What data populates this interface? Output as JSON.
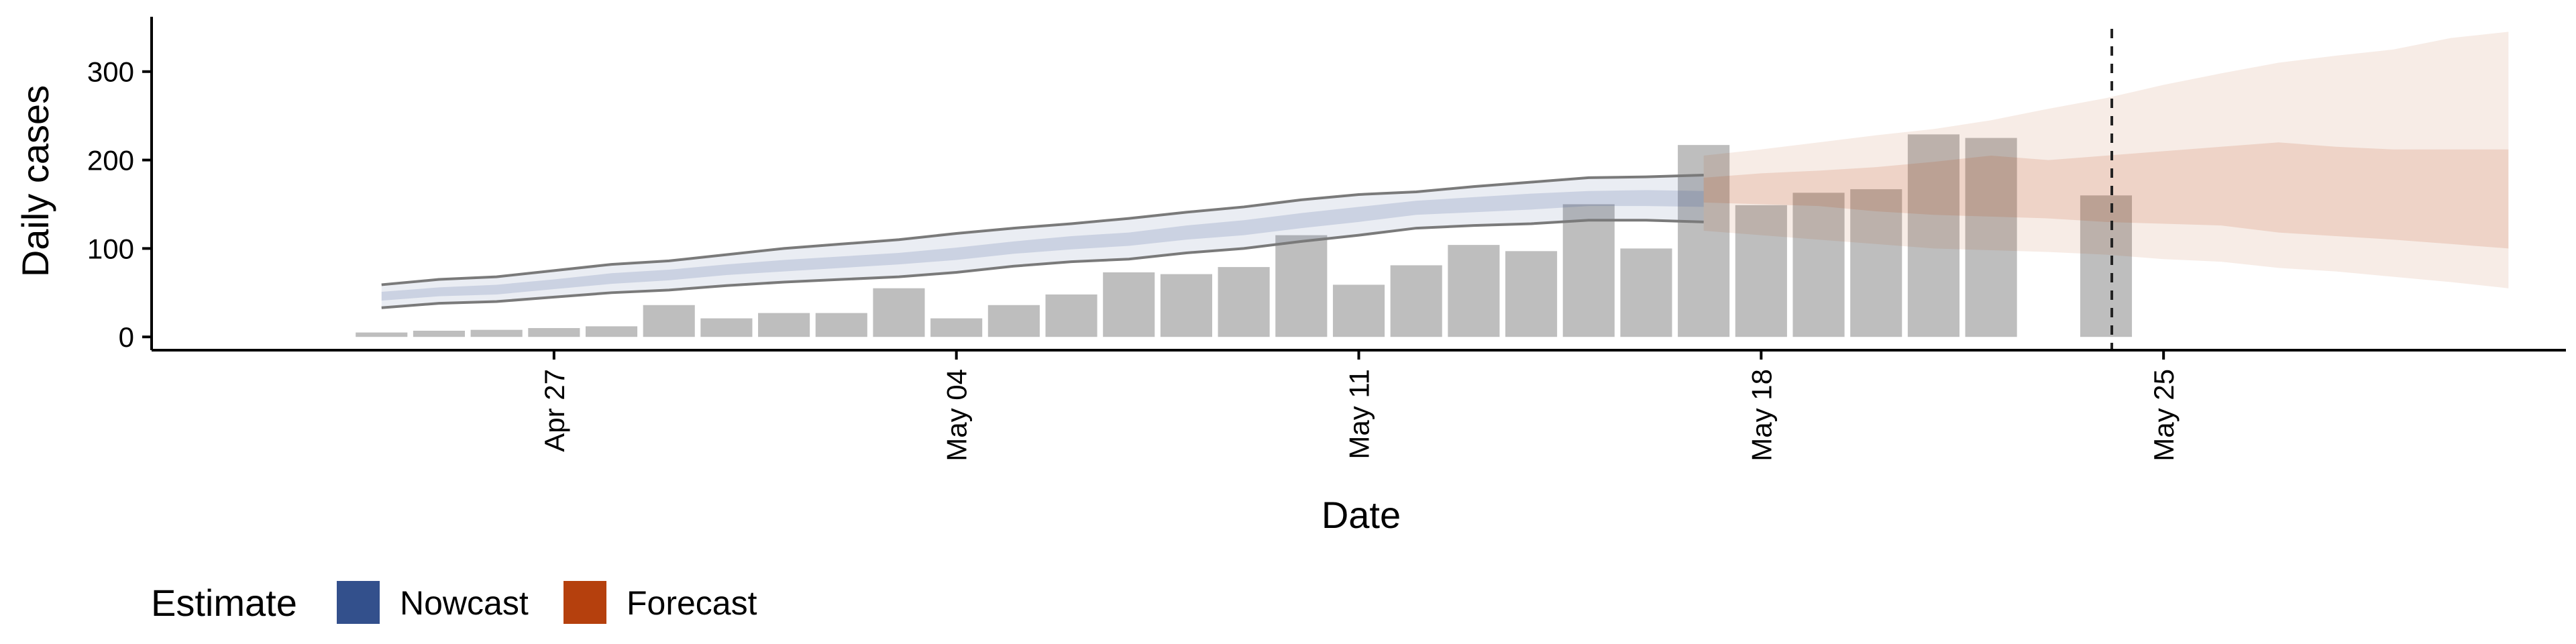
{
  "chart_data": {
    "type": "bar",
    "xlabel": "Date",
    "ylabel": "Daily cases",
    "xlim": [
      "2020-04-20",
      "2020-06-01"
    ],
    "ylim": [
      -15,
      362
    ],
    "y_ticks": [
      0,
      100,
      200,
      300
    ],
    "x_ticks": [
      "2020-04-27",
      "2020-05-04",
      "2020-05-11",
      "2020-05-18",
      "2020-05-25"
    ],
    "x_tick_labels": [
      "Apr 27",
      "May 04",
      "May 11",
      "May 18",
      "May 25"
    ],
    "grid": false,
    "colors": {
      "bars": "#bebebe",
      "nowcast": "#33508c",
      "forecast": "#b5400d",
      "nowcast_outline": "#7a7a7a",
      "vline": "#222222"
    },
    "observed_cases": {
      "dates": [
        "2020-04-24",
        "2020-04-25",
        "2020-04-26",
        "2020-04-27",
        "2020-04-28",
        "2020-04-29",
        "2020-04-30",
        "2020-05-01",
        "2020-05-02",
        "2020-05-03",
        "2020-05-04",
        "2020-05-05",
        "2020-05-06",
        "2020-05-07",
        "2020-05-08",
        "2020-05-09",
        "2020-05-10",
        "2020-05-11",
        "2020-05-12",
        "2020-05-13",
        "2020-05-14",
        "2020-05-15",
        "2020-05-16",
        "2020-05-17",
        "2020-05-18",
        "2020-05-19",
        "2020-05-20",
        "2020-05-21",
        "2020-05-22",
        "2020-05-24"
      ],
      "values": [
        5,
        7,
        8,
        10,
        12,
        36,
        21,
        27,
        27,
        55,
        21,
        36,
        48,
        73,
        71,
        79,
        115,
        59,
        81,
        104,
        97,
        150,
        100,
        217,
        149,
        163,
        167,
        229,
        225,
        160
      ]
    },
    "nowcast": {
      "dates": [
        "2020-04-24",
        "2020-04-25",
        "2020-04-26",
        "2020-04-27",
        "2020-04-28",
        "2020-04-29",
        "2020-04-30",
        "2020-05-01",
        "2020-05-02",
        "2020-05-03",
        "2020-05-04",
        "2020-05-05",
        "2020-05-06",
        "2020-05-07",
        "2020-05-08",
        "2020-05-09",
        "2020-05-10",
        "2020-05-11",
        "2020-05-12",
        "2020-05-13",
        "2020-05-14",
        "2020-05-15",
        "2020-05-16",
        "2020-05-17"
      ],
      "lower90": [
        33,
        38,
        40,
        45,
        50,
        53,
        58,
        62,
        65,
        68,
        73,
        80,
        85,
        88,
        95,
        100,
        108,
        115,
        123,
        126,
        128,
        132,
        132,
        130
      ],
      "lower50": [
        41,
        46,
        48,
        54,
        60,
        64,
        70,
        74,
        78,
        82,
        87,
        94,
        99,
        103,
        110,
        115,
        123,
        130,
        138,
        141,
        144,
        148,
        148,
        147
      ],
      "upper50": [
        51,
        56,
        59,
        65,
        72,
        76,
        82,
        87,
        91,
        95,
        101,
        108,
        114,
        118,
        126,
        132,
        140,
        147,
        154,
        158,
        162,
        165,
        166,
        165
      ],
      "upper90": [
        59,
        65,
        68,
        75,
        82,
        86,
        93,
        100,
        105,
        110,
        117,
        123,
        128,
        134,
        141,
        147,
        155,
        161,
        164,
        170,
        175,
        180,
        181,
        183
      ]
    },
    "forecast": {
      "dates": [
        "2020-05-17",
        "2020-05-18",
        "2020-05-19",
        "2020-05-20",
        "2020-05-21",
        "2020-05-22",
        "2020-05-23",
        "2020-05-24",
        "2020-05-25",
        "2020-05-26",
        "2020-05-27",
        "2020-05-28",
        "2020-05-29",
        "2020-05-30",
        "2020-05-31"
      ],
      "lower90": [
        120,
        115,
        110,
        105,
        100,
        98,
        96,
        93,
        88,
        85,
        78,
        74,
        68,
        62,
        55
      ],
      "lower50": [
        152,
        150,
        148,
        142,
        138,
        136,
        134,
        130,
        128,
        126,
        118,
        114,
        110,
        105,
        100
      ],
      "upper50": [
        180,
        185,
        188,
        192,
        198,
        205,
        200,
        205,
        210,
        215,
        220,
        215,
        212,
        212,
        212
      ],
      "upper90": [
        205,
        212,
        220,
        228,
        235,
        245,
        258,
        270,
        285,
        298,
        310,
        318,
        325,
        338,
        345
      ]
    },
    "vline_date": "2020-05-24",
    "legend": {
      "title": "Estimate",
      "position": "bottom-left",
      "items": [
        {
          "label": "Nowcast",
          "color": "#33508c"
        },
        {
          "label": "Forecast",
          "color": "#b5400d"
        }
      ]
    }
  }
}
